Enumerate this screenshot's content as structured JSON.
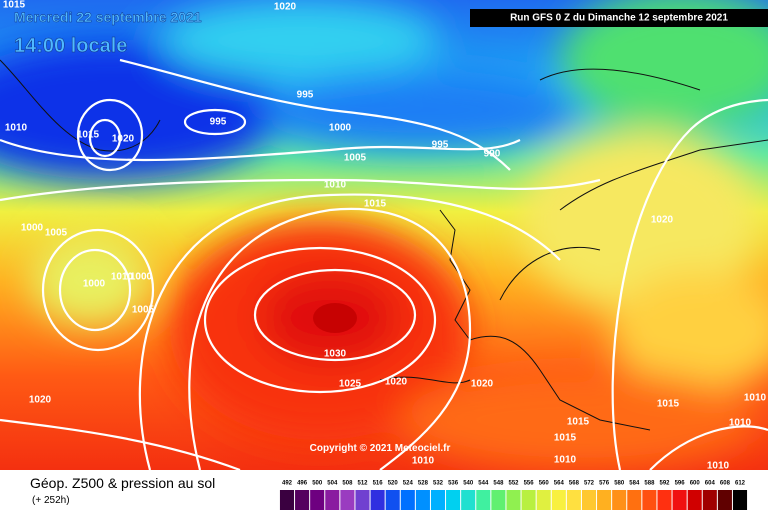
{
  "header": {
    "date": "Mercredi 22 septembre 2021",
    "time": "14:00 locale",
    "run": "Run GFS 0 Z du Dimanche 12 septembre 2021"
  },
  "map": {
    "copyright": "Copyright © 2021 Meteociel.fr",
    "isobar_labels": [
      1015,
      1020,
      995,
      995,
      1015,
      1020,
      1010,
      1000,
      1005,
      995,
      990,
      1010,
      1015,
      1020,
      1000,
      1005,
      1010,
      1000,
      1000,
      1005,
      1030,
      1025,
      1020,
      1020,
      1015,
      1015,
      1015,
      1020,
      1010,
      1010,
      1010,
      1010,
      1010
    ]
  },
  "footer": {
    "title": "Géop. Z500 & pression au sol",
    "lead": "(+ 252h)",
    "scale": {
      "labels": [
        492,
        496,
        500,
        504,
        508,
        512,
        516,
        520,
        524,
        528,
        532,
        536,
        540,
        544,
        548,
        552,
        556,
        560,
        564,
        568,
        572,
        576,
        580,
        584,
        588,
        592,
        596,
        600,
        604,
        608,
        612
      ],
      "colors": [
        "#3a0040",
        "#55005f",
        "#6e0080",
        "#8a1ca0",
        "#9a3cc0",
        "#7040d0",
        "#3030e0",
        "#1050f0",
        "#0070ff",
        "#0090ff",
        "#00b0ff",
        "#00d0f0",
        "#20e0d0",
        "#40f0a0",
        "#60f070",
        "#90f050",
        "#b8f040",
        "#e0f040",
        "#f8f040",
        "#ffe040",
        "#ffc830",
        "#ffb020",
        "#ff9018",
        "#ff7010",
        "#ff5010",
        "#ff3010",
        "#f01010",
        "#d00000",
        "#a00000",
        "#600000",
        "#000000"
      ]
    }
  }
}
